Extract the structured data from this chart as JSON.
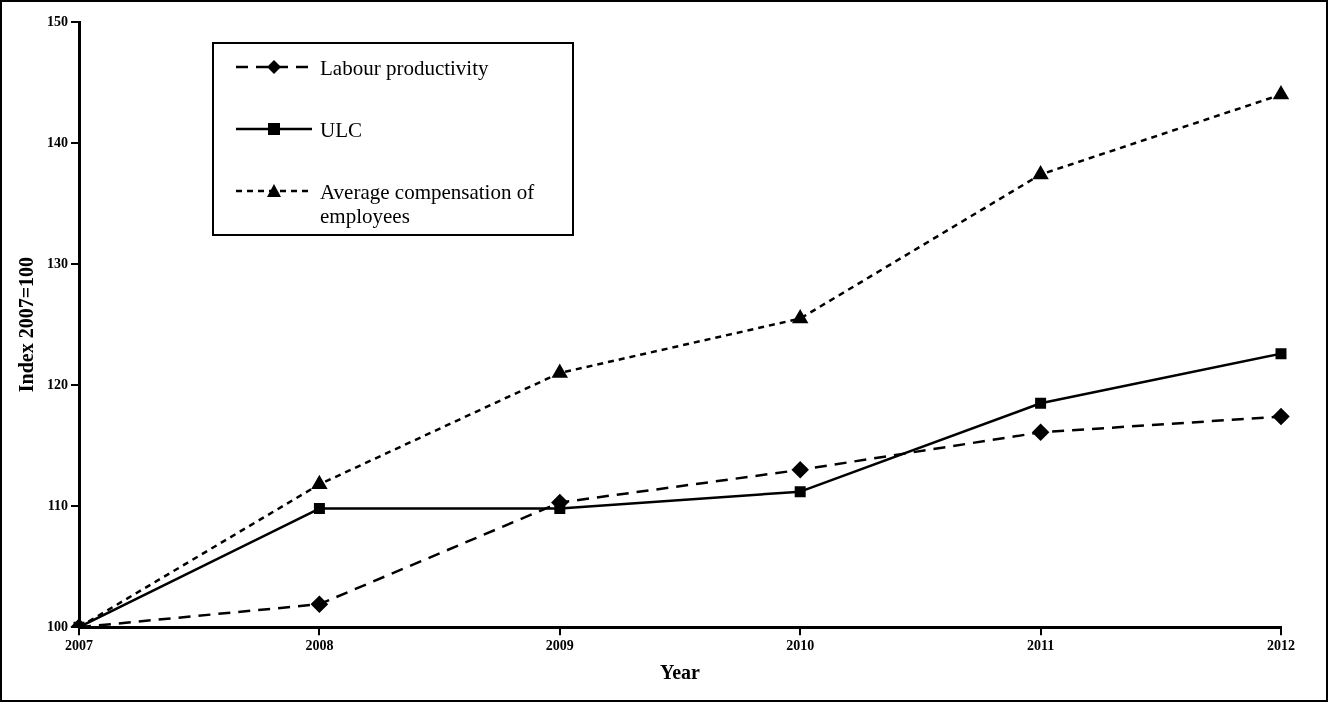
{
  "chart_data": {
    "type": "line",
    "xlabel": "Year",
    "ylabel": "Index 2007=100",
    "categories": [
      "2007",
      "2008",
      "2009",
      "2010",
      "2011",
      "2012"
    ],
    "series": [
      {
        "name": "Labour productivity",
        "color": "#000000",
        "line_style": "dashed",
        "marker": "diamond",
        "values": [
          100,
          101.9,
          110.3,
          113.0,
          116.1,
          117.4
        ]
      },
      {
        "name": "ULC",
        "color": "#000000",
        "line_style": "solid",
        "marker": "square",
        "values": [
          100,
          109.8,
          109.8,
          111.2,
          118.5,
          122.6
        ]
      },
      {
        "name": "Average compensation of employees",
        "color": "#000000",
        "line_style": "dotted",
        "marker": "triangle",
        "values": [
          100,
          111.8,
          121.0,
          125.5,
          137.4,
          144.0
        ]
      }
    ],
    "ylim": [
      100,
      150
    ],
    "yticks": [
      100,
      110,
      120,
      130,
      140,
      150
    ],
    "grid": false,
    "legend": "top left"
  }
}
